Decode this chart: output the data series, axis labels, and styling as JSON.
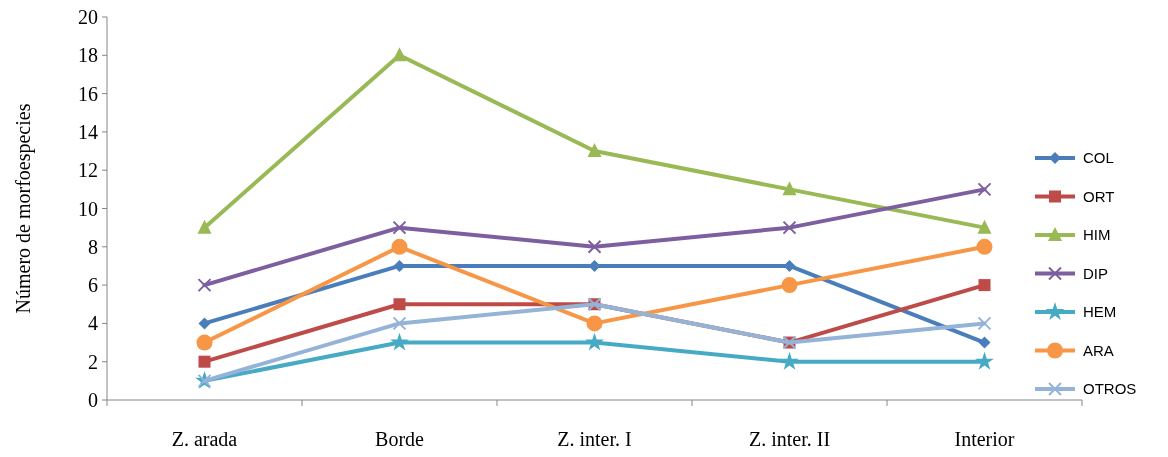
{
  "chart_data": {
    "type": "line",
    "ylabel": "Número de morfoespecies",
    "categories": [
      "Z. arada",
      "Borde",
      "Z. inter. I",
      "Z. inter. II",
      "Interior"
    ],
    "ylim": [
      0,
      20
    ],
    "yticks": [
      0,
      2,
      4,
      6,
      8,
      10,
      12,
      14,
      16,
      18,
      20
    ],
    "grid": false,
    "legend": "right",
    "series": [
      {
        "name": "COL",
        "color": "#4a7ebb",
        "marker": "diamond",
        "values": [
          4,
          7,
          7,
          7,
          3
        ]
      },
      {
        "name": "ORT",
        "color": "#be4b48",
        "marker": "square",
        "values": [
          2,
          5,
          5,
          3,
          6
        ]
      },
      {
        "name": "HIM",
        "color": "#98b954",
        "marker": "triangle",
        "values": [
          9,
          18,
          13,
          11,
          9
        ]
      },
      {
        "name": "DIP",
        "color": "#7d5fa0",
        "marker": "cross",
        "values": [
          6,
          9,
          8,
          9,
          11
        ]
      },
      {
        "name": "HEM",
        "color": "#46aac5",
        "marker": "star",
        "values": [
          1,
          3,
          3,
          2,
          2
        ]
      },
      {
        "name": "ARA",
        "color": "#f79646",
        "marker": "circle",
        "values": [
          3,
          8,
          4,
          6,
          8
        ]
      },
      {
        "name": "OTROS",
        "color": "#95b3d7",
        "marker": "cross",
        "values": [
          1,
          4,
          5,
          3,
          4
        ]
      }
    ]
  }
}
